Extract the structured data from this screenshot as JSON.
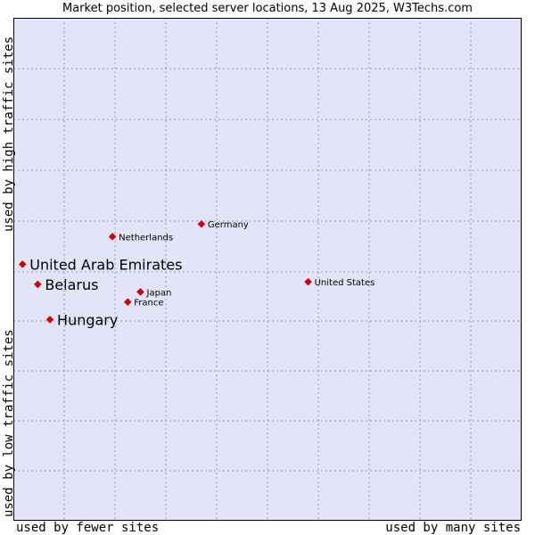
{
  "title": "Market position, selected server locations, 13 Aug 2025, W3Techs.com",
  "axes": {
    "y_high": "used by high traffic sites",
    "y_low": "used by low traffic sites",
    "x_low": "used by fewer sites",
    "x_high": "used by many sites"
  },
  "colors": {
    "plot_bg": "#e4e4f8",
    "grid": "#9999bb",
    "point": "#dd0000",
    "axis": "#000000"
  },
  "chart_data": {
    "type": "scatter",
    "title": "Market position, selected server locations, 13 Aug 2025, W3Techs.com",
    "xlabel": "used by fewer sites … used by many sites",
    "ylabel": "used by low traffic sites … used by high traffic sites",
    "xlim": [
      0,
      10
    ],
    "ylim": [
      0,
      10
    ],
    "grid": true,
    "points": [
      {
        "label": "Germany",
        "x": 3.7,
        "y": 5.9,
        "emphasis": false
      },
      {
        "label": "Netherlands",
        "x": 1.95,
        "y": 5.65,
        "emphasis": false
      },
      {
        "label": "United Arab Emirates",
        "x": 0.18,
        "y": 5.1,
        "emphasis": true
      },
      {
        "label": "Belarus",
        "x": 0.48,
        "y": 4.7,
        "emphasis": true
      },
      {
        "label": "United States",
        "x": 5.8,
        "y": 4.75,
        "emphasis": false
      },
      {
        "label": "Japan",
        "x": 2.5,
        "y": 4.55,
        "emphasis": false
      },
      {
        "label": "France",
        "x": 2.25,
        "y": 4.35,
        "emphasis": false
      },
      {
        "label": "Hungary",
        "x": 0.72,
        "y": 4.0,
        "emphasis": true
      }
    ]
  }
}
